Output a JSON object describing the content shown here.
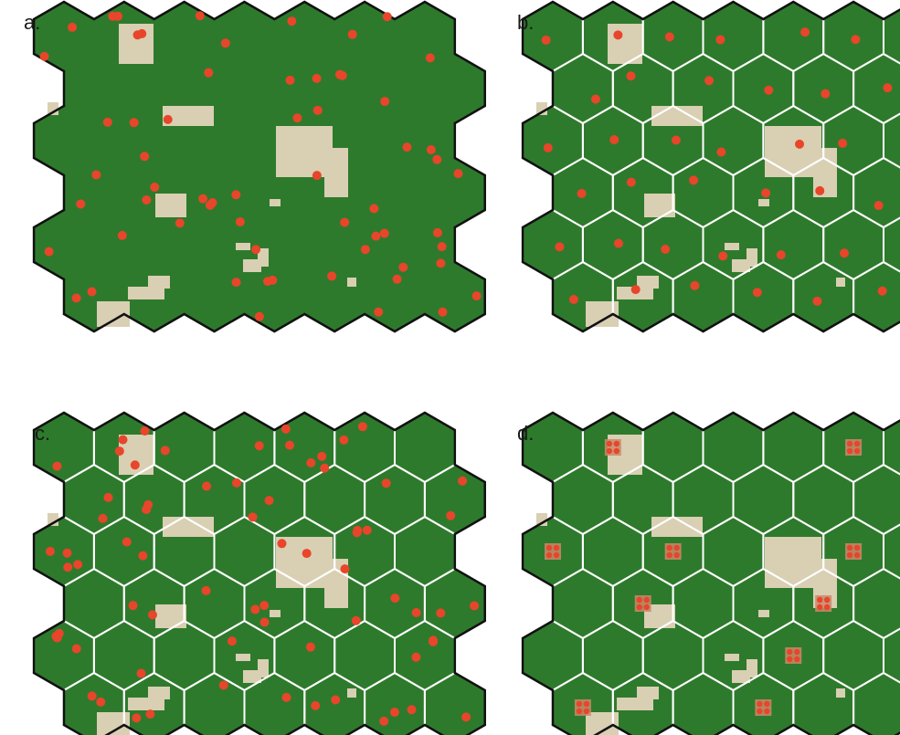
{
  "panels": [
    {
      "label": "a.",
      "grid": false,
      "points": "scattered"
    },
    {
      "label": "b.",
      "grid": true,
      "points": "per-cell"
    },
    {
      "label": "c.",
      "grid": true,
      "points": "scattered"
    },
    {
      "label": "d.",
      "grid": true,
      "points": "clustered"
    }
  ],
  "colors": {
    "forest": "#2e7a2c",
    "clearing": "#d9cfb3",
    "point": "#e8452b",
    "grid_line": "#ffffff",
    "outline": "#111111"
  }
}
